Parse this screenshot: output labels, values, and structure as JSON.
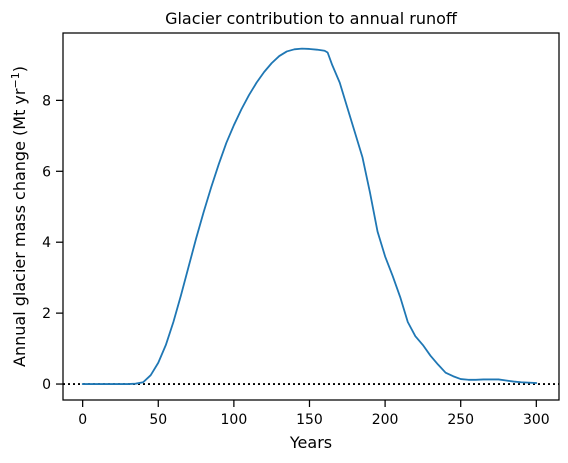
{
  "chart_data": {
    "type": "line",
    "title": "Glacier contribution to annual runoff",
    "xlabel": "Years",
    "ylabel_main": "Annual glacier mass change (Mt yr",
    "ylabel_sup": "−1",
    "ylabel_close": ")",
    "xlim": [
      -13,
      315
    ],
    "ylim": [
      -0.45,
      9.9
    ],
    "xticks": [
      0,
      50,
      100,
      150,
      200,
      250,
      300
    ],
    "xtick_labels": [
      "0",
      "50",
      "100",
      "150",
      "200",
      "250",
      "300"
    ],
    "yticks": [
      0,
      2,
      4,
      6,
      8
    ],
    "ytick_labels": [
      "0",
      "2",
      "4",
      "6",
      "8"
    ],
    "grid": false,
    "reference_line": {
      "y": 0,
      "style": "dotted",
      "color": "#000000"
    },
    "series": [
      {
        "color": "#1f77b4",
        "x": [
          0,
          10,
          20,
          30,
          35,
          40,
          45,
          50,
          55,
          60,
          65,
          70,
          75,
          80,
          85,
          90,
          95,
          100,
          105,
          110,
          115,
          120,
          125,
          130,
          135,
          140,
          145,
          150,
          155,
          160,
          162,
          165,
          170,
          175,
          180,
          185,
          190,
          195,
          200,
          205,
          210,
          215,
          220,
          225,
          230,
          235,
          240,
          245,
          250,
          255,
          260,
          265,
          270,
          275,
          280,
          285,
          290,
          295,
          300
        ],
        "y": [
          0,
          0,
          0,
          0,
          0.01,
          0.05,
          0.25,
          0.6,
          1.1,
          1.75,
          2.5,
          3.3,
          4.1,
          4.85,
          5.55,
          6.2,
          6.8,
          7.3,
          7.75,
          8.15,
          8.5,
          8.8,
          9.05,
          9.25,
          9.38,
          9.44,
          9.46,
          9.45,
          9.43,
          9.4,
          9.35,
          9.0,
          8.5,
          7.8,
          7.1,
          6.4,
          5.4,
          4.3,
          3.6,
          3.05,
          2.45,
          1.75,
          1.35,
          1.1,
          0.8,
          0.55,
          0.32,
          0.22,
          0.14,
          0.12,
          0.12,
          0.13,
          0.13,
          0.13,
          0.1,
          0.07,
          0.05,
          0.04,
          0.03
        ]
      }
    ]
  }
}
